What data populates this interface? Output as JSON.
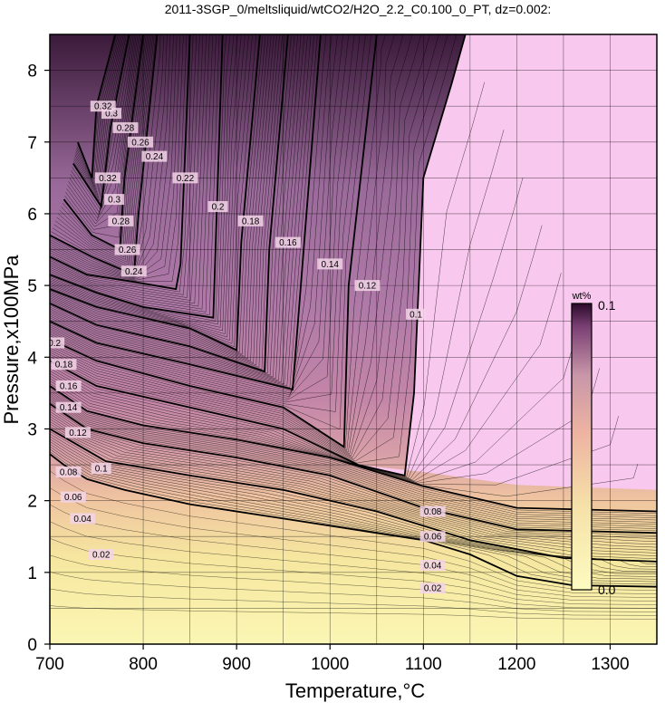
{
  "chart_data": {
    "type": "heatmap",
    "title": "2011-3SGP_0/meltsliquid/wtCO2/H2O_2.2_C0.100_0_PT, dz=0.002:",
    "xlabel": "Temperature,°C",
    "ylabel": "Pressure,x100MPa",
    "xlim": [
      700,
      1350
    ],
    "ylim": [
      0,
      8.5
    ],
    "x_ticks": [
      "700",
      "800",
      "900",
      "1000",
      "1100",
      "1200",
      "1300"
    ],
    "y_ticks": [
      "0",
      "1",
      "2",
      "3",
      "4",
      "5",
      "6",
      "7",
      "8"
    ],
    "grid": true,
    "colorbar": {
      "title": "wt%",
      "min_label": "0.0",
      "max_label": "0.1",
      "range": [
        0.0,
        0.1
      ],
      "colors": [
        "#fdfbc0",
        "#f7e2a8",
        "#f0b5a0",
        "#c996a8",
        "#804a78",
        "#2a0a2a"
      ]
    },
    "contour_interval": 0.002,
    "major_contours": [
      {
        "value": "0.02",
        "points": [
          [
            700,
            2.65
          ],
          [
            715,
            2.5
          ],
          [
            740,
            2.3
          ],
          [
            780,
            2.15
          ],
          [
            850,
            1.95
          ],
          [
            950,
            1.75
          ],
          [
            1050,
            1.55
          ],
          [
            1100,
            1.45
          ],
          [
            1150,
            1.25
          ],
          [
            1200,
            0.95
          ],
          [
            1260,
            0.82
          ],
          [
            1350,
            0.8
          ]
        ]
      },
      {
        "value": "0.04",
        "points": [
          [
            700,
            3.0
          ],
          [
            720,
            2.85
          ],
          [
            760,
            2.55
          ],
          [
            850,
            2.35
          ],
          [
            950,
            2.15
          ],
          [
            1050,
            1.85
          ],
          [
            1150,
            1.45
          ],
          [
            1250,
            1.2
          ],
          [
            1350,
            1.15
          ]
        ]
      },
      {
        "value": "0.06",
        "points": [
          [
            700,
            3.35
          ],
          [
            740,
            3.0
          ],
          [
            800,
            2.8
          ],
          [
            900,
            2.6
          ],
          [
            1000,
            2.35
          ],
          [
            1100,
            1.9
          ],
          [
            1200,
            1.6
          ],
          [
            1350,
            1.55
          ]
        ]
      },
      {
        "value": "0.08",
        "points": [
          [
            700,
            3.6
          ],
          [
            740,
            3.25
          ],
          [
            800,
            3.05
          ],
          [
            900,
            2.85
          ],
          [
            1000,
            2.6
          ],
          [
            1100,
            2.2
          ],
          [
            1200,
            1.9
          ],
          [
            1350,
            1.85
          ]
        ]
      },
      {
        "value": "0.1",
        "points": [
          [
            700,
            3.95
          ],
          [
            750,
            3.6
          ],
          [
            850,
            3.3
          ],
          [
            950,
            3.0
          ],
          [
            1030,
            2.5
          ],
          [
            1080,
            2.35
          ],
          [
            1090,
            3.5
          ],
          [
            1100,
            6.5
          ],
          [
            1130,
            7.8
          ],
          [
            1145,
            8.5
          ]
        ]
      },
      {
        "value": "0.12",
        "points": [
          [
            700,
            4.25
          ],
          [
            750,
            3.95
          ],
          [
            850,
            3.6
          ],
          [
            950,
            3.3
          ],
          [
            1015,
            2.75
          ],
          [
            1020,
            5.0
          ],
          [
            1050,
            8.5
          ]
        ]
      },
      {
        "value": "0.14",
        "points": [
          [
            700,
            4.5
          ],
          [
            750,
            4.2
          ],
          [
            850,
            3.9
          ],
          [
            960,
            3.55
          ],
          [
            970,
            5.2
          ],
          [
            990,
            8.5
          ]
        ]
      },
      {
        "value": "0.16",
        "points": [
          [
            700,
            4.75
          ],
          [
            750,
            4.45
          ],
          [
            850,
            4.15
          ],
          [
            930,
            3.8
          ],
          [
            935,
            5.5
          ],
          [
            955,
            8.5
          ]
        ]
      },
      {
        "value": "0.18",
        "points": [
          [
            700,
            4.95
          ],
          [
            750,
            4.7
          ],
          [
            850,
            4.4
          ],
          [
            900,
            4.1
          ],
          [
            905,
            5.6
          ],
          [
            925,
            8.5
          ]
        ]
      },
      {
        "value": "0.2",
        "points": [
          [
            700,
            5.15
          ],
          [
            750,
            4.9
          ],
          [
            800,
            4.7
          ],
          [
            875,
            4.55
          ],
          [
            885,
            8.5
          ]
        ]
      },
      {
        "value": "0.22",
        "points": [
          [
            700,
            5.4
          ],
          [
            740,
            5.15
          ],
          [
            790,
            5.05
          ],
          [
            835,
            4.95
          ],
          [
            840,
            5.3
          ],
          [
            850,
            8.5
          ]
        ]
      },
      {
        "value": "0.24",
        "points": [
          [
            700,
            5.7
          ],
          [
            745,
            5.4
          ],
          [
            790,
            5.15
          ],
          [
            795,
            6.0
          ],
          [
            815,
            8.5
          ]
        ]
      },
      {
        "value": "0.26",
        "points": [
          [
            715,
            6.2
          ],
          [
            745,
            5.7
          ],
          [
            775,
            5.5
          ],
          [
            780,
            6.5
          ],
          [
            800,
            8.5
          ]
        ]
      },
      {
        "value": "0.28",
        "points": [
          [
            725,
            6.7
          ],
          [
            755,
            6.1
          ],
          [
            765,
            7.2
          ],
          [
            785,
            8.5
          ]
        ]
      },
      {
        "value": "0.3",
        "points": [
          [
            730,
            7.0
          ],
          [
            745,
            6.5
          ],
          [
            750,
            7.5
          ],
          [
            770,
            8.5
          ]
        ]
      }
    ],
    "contour_labels": [
      {
        "text": "0.02",
        "x": 755,
        "y": 1.25
      },
      {
        "text": "0.04",
        "x": 735,
        "y": 1.75
      },
      {
        "text": "0.06",
        "x": 725,
        "y": 2.05
      },
      {
        "text": "0.08",
        "x": 720,
        "y": 2.4
      },
      {
        "text": "0.1",
        "x": 755,
        "y": 2.45
      },
      {
        "text": "0.12",
        "x": 730,
        "y": 2.95
      },
      {
        "text": "0.14",
        "x": 720,
        "y": 3.3
      },
      {
        "text": "0.16",
        "x": 720,
        "y": 3.6
      },
      {
        "text": "0.18",
        "x": 715,
        "y": 3.9
      },
      {
        "text": "0.2",
        "x": 705,
        "y": 4.2
      },
      {
        "text": "0.02",
        "x": 1110,
        "y": 0.78
      },
      {
        "text": "0.04",
        "x": 1110,
        "y": 1.1
      },
      {
        "text": "0.06",
        "x": 1110,
        "y": 1.5
      },
      {
        "text": "0.08",
        "x": 1110,
        "y": 1.85
      },
      {
        "text": "0.1",
        "x": 1092,
        "y": 4.6
      },
      {
        "text": "0.12",
        "x": 1040,
        "y": 5.0
      },
      {
        "text": "0.14",
        "x": 1000,
        "y": 5.3
      },
      {
        "text": "0.16",
        "x": 955,
        "y": 5.6
      },
      {
        "text": "0.18",
        "x": 915,
        "y": 5.9
      },
      {
        "text": "0.2",
        "x": 880,
        "y": 6.1
      },
      {
        "text": "0.22",
        "x": 845,
        "y": 6.5
      },
      {
        "text": "0.24",
        "x": 812,
        "y": 6.8
      },
      {
        "text": "0.26",
        "x": 797,
        "y": 7.0
      },
      {
        "text": "0.28",
        "x": 781,
        "y": 7.2
      },
      {
        "text": "0.3",
        "x": 766,
        "y": 7.4
      },
      {
        "text": "0.32",
        "x": 757,
        "y": 7.5
      },
      {
        "text": "0.24",
        "x": 790,
        "y": 5.2
      },
      {
        "text": "0.26",
        "x": 783,
        "y": 5.5
      },
      {
        "text": "0.28",
        "x": 776,
        "y": 5.9
      },
      {
        "text": "0.3",
        "x": 769,
        "y": 6.2
      },
      {
        "text": "0.32",
        "x": 762,
        "y": 6.5
      }
    ]
  }
}
